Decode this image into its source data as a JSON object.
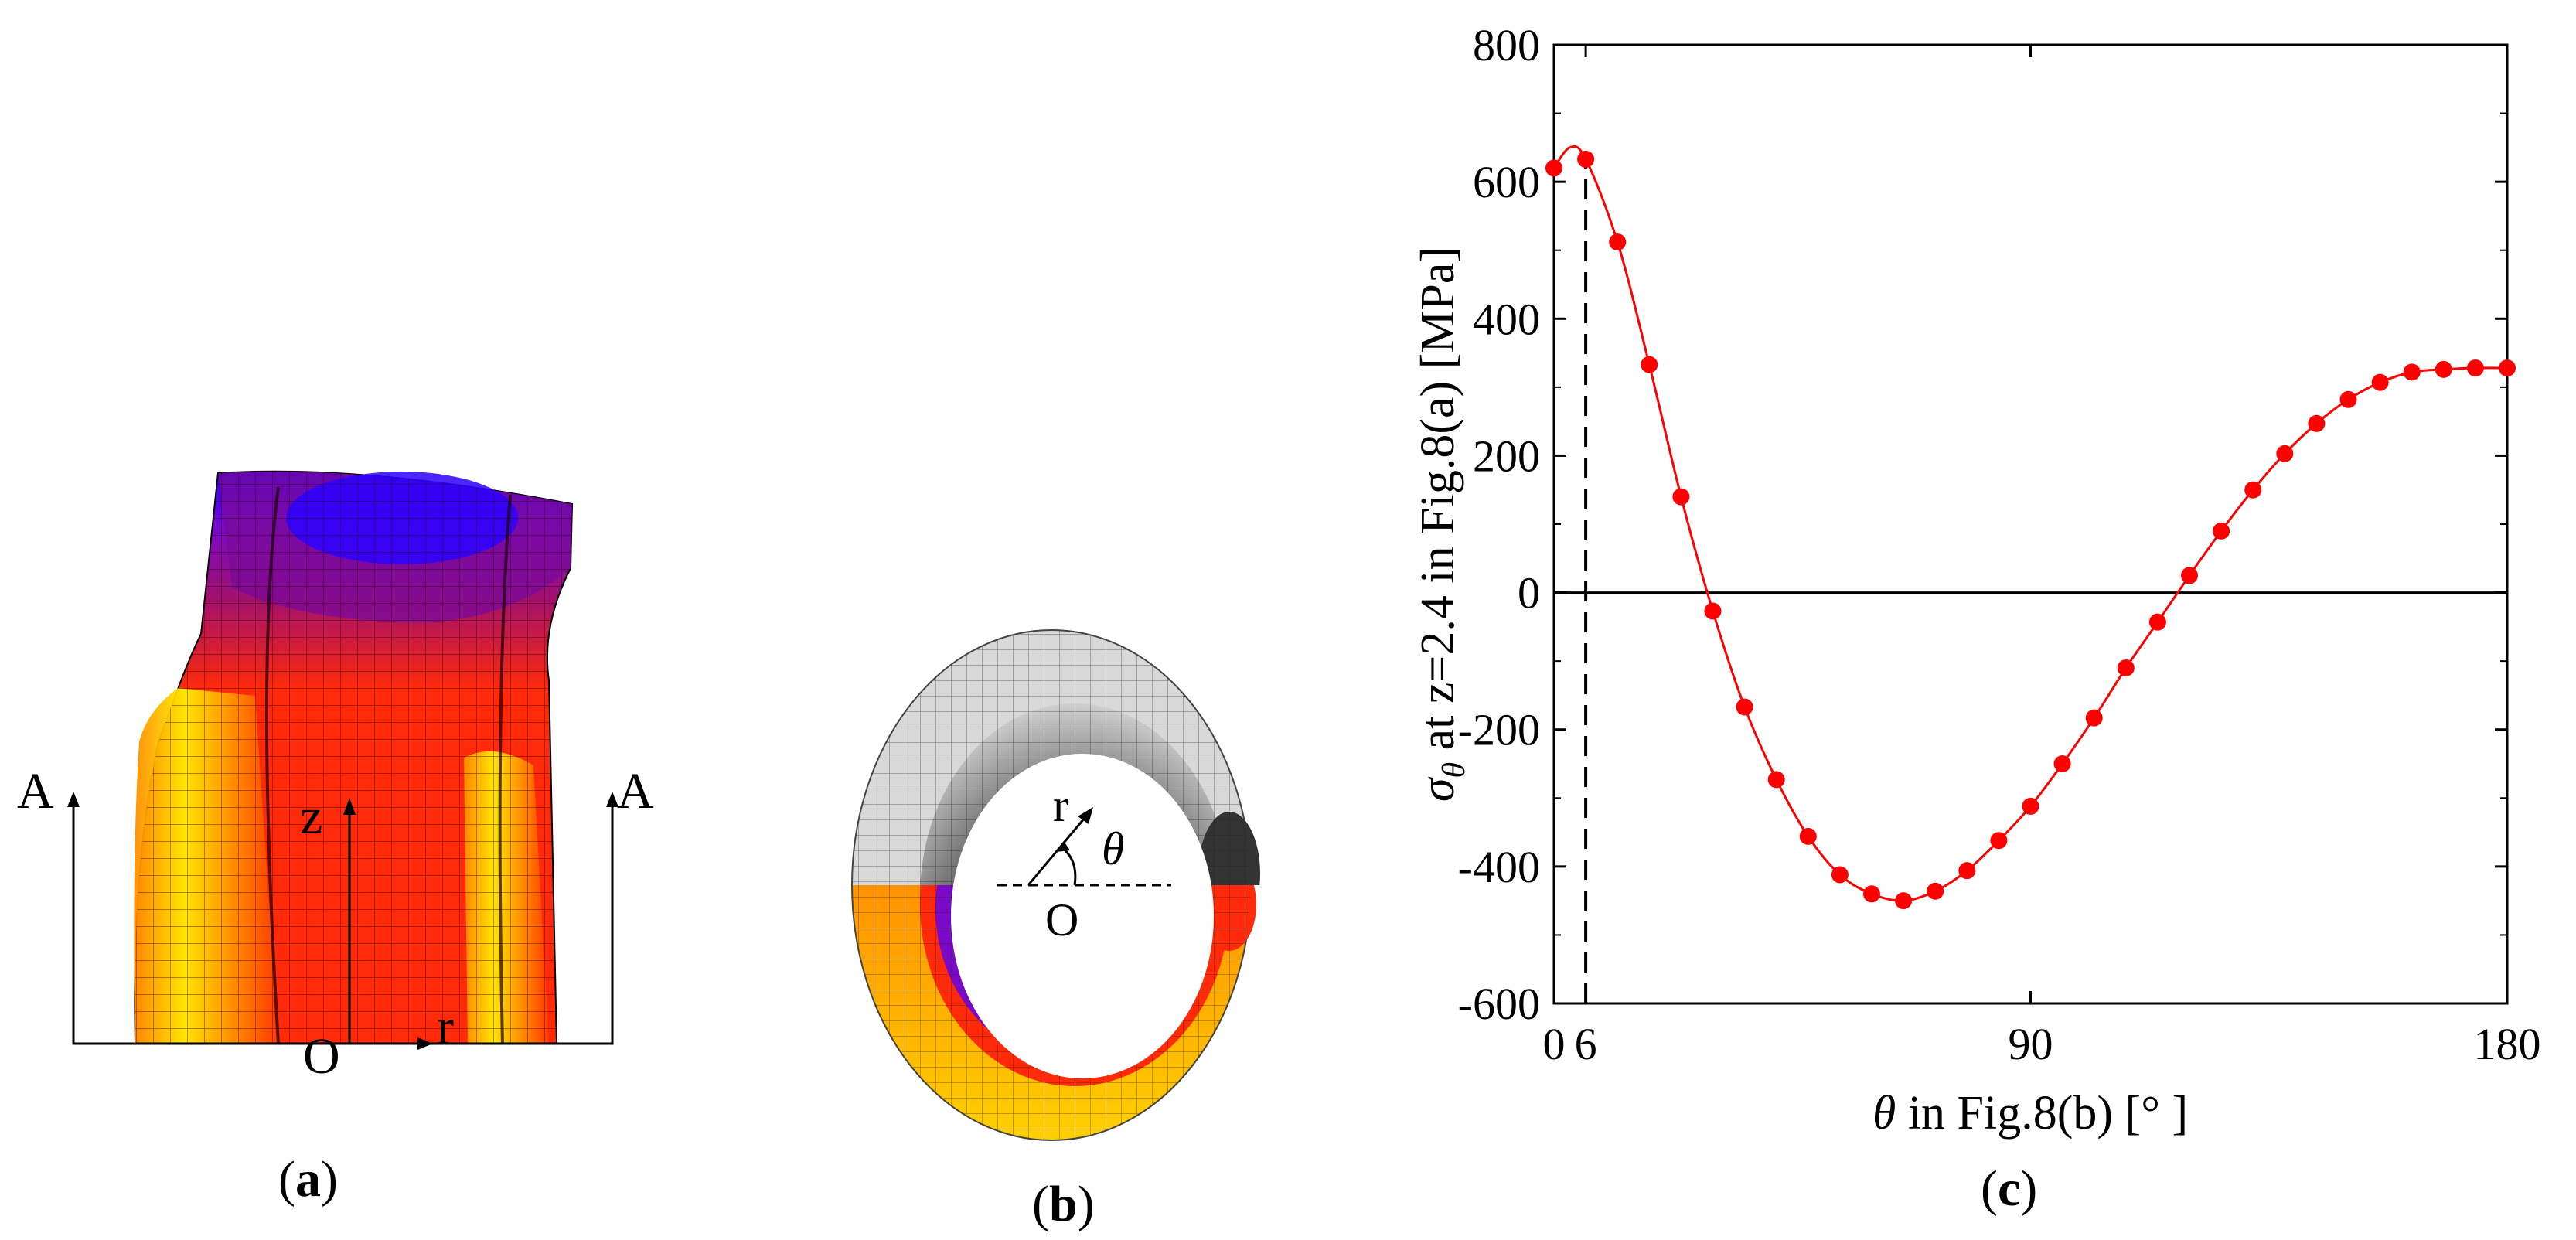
{
  "panels": {
    "a": {
      "label_open": "(",
      "label_letter": "a",
      "label_close": ")",
      "section_left": "A",
      "section_right": "A",
      "axis_z": "z",
      "axis_r": "r",
      "origin": "O"
    },
    "b": {
      "label_open": "(",
      "label_letter": "b",
      "label_close": ")",
      "axis_r": "r",
      "angle": "θ",
      "origin": "O"
    },
    "c": {
      "label_open": "(",
      "label_letter": "c",
      "label_close": ")"
    }
  },
  "colors": {
    "series": "#ff0000",
    "axis": "#000000",
    "contour_red": "#ff2a0a",
    "contour_orange": "#ff8c00",
    "contour_yellow": "#ffee00",
    "contour_purple": "#8b0a8b",
    "contour_blue": "#2b00ff"
  },
  "chart_data": {
    "type": "line",
    "title": "",
    "xlabel": "θ in Fig.8(b) [°]",
    "ylabel": "σθ at z=2.4 in Fig.8(a) [MPa]",
    "ylabel_symbol": "σ",
    "ylabel_sub": "θ",
    "ylabel_rest": " at z=2.4 in Fig.8(a) [MPa]",
    "xlabel_symbol": "θ",
    "xlabel_rest": " in Fig.8(b) [°   ]",
    "xlim": [
      0,
      180
    ],
    "ylim": [
      -600,
      800
    ],
    "xticks": [
      0,
      6,
      90,
      180
    ],
    "xtick_labels": [
      "0",
      "6",
      "90",
      "180"
    ],
    "yticks": [
      -600,
      -400,
      -200,
      0,
      200,
      400,
      600,
      800
    ],
    "ytick_labels": [
      "-600",
      "-400",
      "-200",
      "0",
      "200",
      "400",
      "600",
      "800"
    ],
    "reference_line_x": 6,
    "zero_line": true,
    "series": [
      {
        "name": "σθ",
        "x": [
          0,
          6,
          12,
          18,
          24,
          30,
          36,
          42,
          48,
          54,
          60,
          66,
          72,
          78,
          84,
          90,
          96,
          102,
          108,
          114,
          120,
          126,
          132,
          138,
          144,
          150,
          156,
          162,
          168,
          174,
          180
        ],
        "values": [
          620,
          633,
          512,
          333,
          140,
          -27,
          -167,
          -273,
          -356,
          -412,
          -440,
          -450,
          -436,
          -406,
          -362,
          -312,
          -250,
          -183,
          -110,
          -43,
          25,
          90,
          150,
          203,
          247,
          282,
          307,
          322,
          326,
          328,
          328
        ]
      }
    ]
  }
}
